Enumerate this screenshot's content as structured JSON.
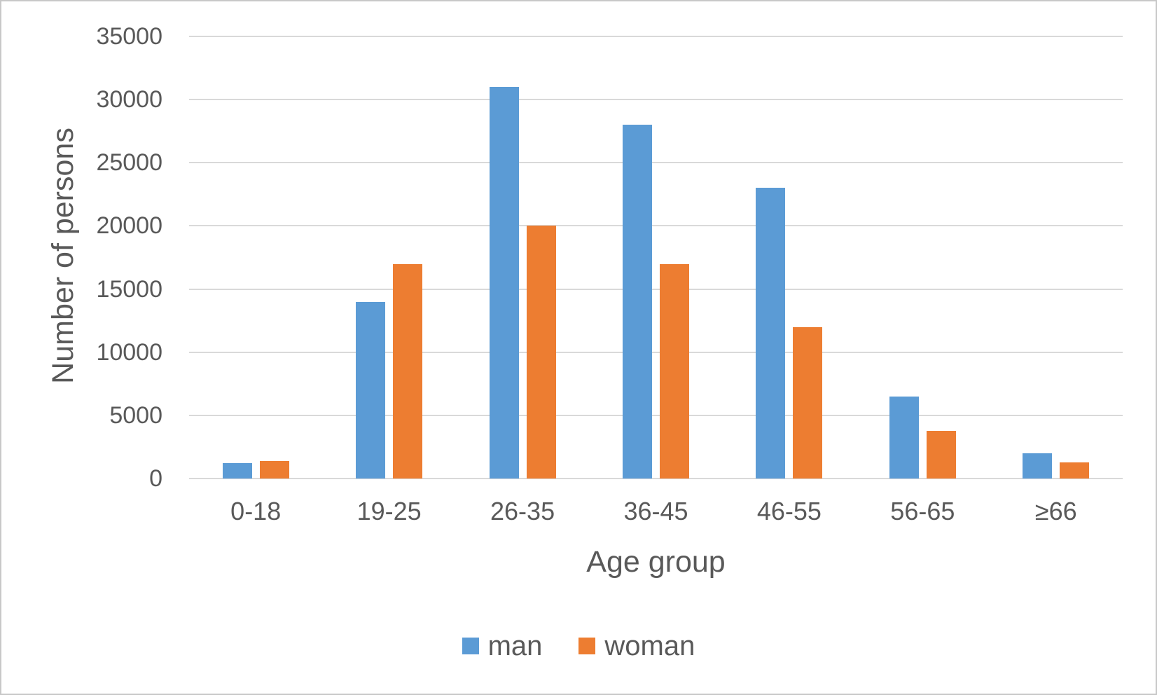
{
  "window": {
    "background": "#FFFFFF",
    "border_color": "#C8C8C8"
  },
  "colors": {
    "text": "#595959",
    "gridline": "#D9D9D9",
    "axis_line": "#D9D9D9",
    "man": "#5B9BD5",
    "woman": "#ED7D31"
  },
  "chart_data": {
    "type": "bar",
    "title": "",
    "categories": [
      "0-18",
      "19-25",
      "26-35",
      "36-45",
      "46-55",
      "56-65",
      "≥66"
    ],
    "series": [
      {
        "name": "man",
        "color": "#5B9BD5",
        "values": [
          1200,
          14000,
          31000,
          28000,
          23000,
          6500,
          2000
        ]
      },
      {
        "name": "woman",
        "color": "#ED7D31",
        "values": [
          1400,
          17000,
          20000,
          17000,
          12000,
          3800,
          1300
        ]
      }
    ],
    "xlabel": "Age group",
    "ylabel": "Number of persons",
    "ylim": [
      0,
      35000
    ],
    "ytick_step": 5000,
    "grid": true,
    "legend_position": "bottom"
  }
}
